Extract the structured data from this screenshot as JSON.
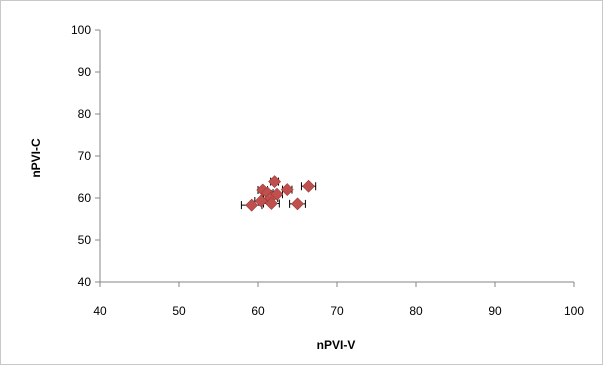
{
  "chart_data": {
    "type": "scatter",
    "title": "",
    "xlabel": "nPVI-V",
    "ylabel": "nPVI-C",
    "xlim": [
      40,
      100
    ],
    "ylim": [
      40,
      100
    ],
    "xticks": [
      40,
      50,
      60,
      70,
      80,
      90,
      100
    ],
    "yticks": [
      40,
      50,
      60,
      70,
      80,
      90,
      100
    ],
    "grid": false,
    "legend": "none",
    "marker_color": "#c0504d",
    "errorbar_color": "#000000",
    "series": [
      {
        "points": [
          {
            "x": 59.2,
            "y": 58.3,
            "xerr": 1.3
          },
          {
            "x": 60.4,
            "y": 59.3,
            "xerr": 0.8
          },
          {
            "x": 60.6,
            "y": 61.9,
            "xerr": 0.6
          },
          {
            "x": 61.2,
            "y": 61.2,
            "xerr": 0.7
          },
          {
            "x": 61.6,
            "y": 60.0,
            "xerr": 0.9
          },
          {
            "x": 61.7,
            "y": 58.7,
            "xerr": 1.0
          },
          {
            "x": 62.1,
            "y": 63.9,
            "xerr": 0.5
          },
          {
            "x": 62.4,
            "y": 60.9,
            "xerr": 0.7
          },
          {
            "x": 63.7,
            "y": 62.0,
            "xerr": 0.6
          },
          {
            "x": 65.0,
            "y": 58.6,
            "xerr": 1.0
          },
          {
            "x": 66.4,
            "y": 62.8,
            "xerr": 0.9
          }
        ]
      }
    ]
  }
}
